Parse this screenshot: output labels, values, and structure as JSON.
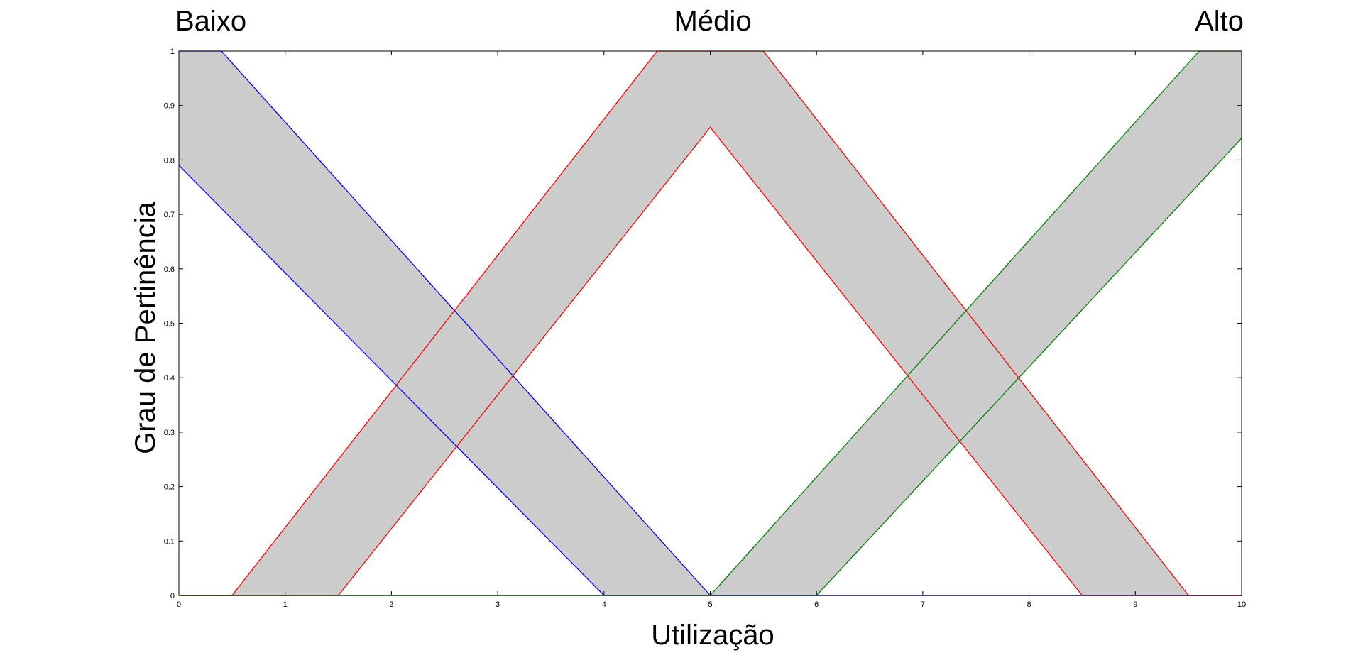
{
  "chart_data": {
    "type": "area",
    "chart_title": "",
    "xlabel": "Utilização",
    "ylabel": "Grau de Pertinência",
    "xlim": [
      0,
      10
    ],
    "ylim": [
      0,
      1
    ],
    "xticks": [
      "0",
      "1",
      "2",
      "3",
      "4",
      "5",
      "6",
      "7",
      "8",
      "9",
      "10"
    ],
    "yticks": [
      "0",
      "0.1",
      "0.2",
      "0.3",
      "0.4",
      "0.5",
      "0.6",
      "0.7",
      "0.8",
      "0.9",
      "1"
    ],
    "grid": false,
    "category_labels": [
      {
        "text": "Baixo",
        "position": "left"
      },
      {
        "text": "Médio",
        "position": "center"
      },
      {
        "text": "Alto",
        "position": "right"
      }
    ],
    "band_fill_color": "#cccccc",
    "series": [
      {
        "color": "#0000ff",
        "upper": [
          [
            0,
            1
          ],
          [
            0.4,
            1
          ],
          [
            5,
            0
          ],
          [
            10,
            0
          ]
        ],
        "lower": [
          [
            0,
            0.79
          ],
          [
            4,
            0
          ],
          [
            10,
            0
          ]
        ]
      },
      {
        "color": "#ff0000",
        "upper": [
          [
            0,
            0
          ],
          [
            0.5,
            0
          ],
          [
            4.5,
            1
          ],
          [
            5.5,
            1
          ],
          [
            9.5,
            0
          ],
          [
            10,
            0
          ]
        ],
        "lower": [
          [
            0,
            0
          ],
          [
            1.5,
            0
          ],
          [
            5,
            0.86
          ],
          [
            8.5,
            0
          ],
          [
            10,
            0
          ]
        ]
      },
      {
        "color": "#008000",
        "upper": [
          [
            0,
            0
          ],
          [
            5,
            0
          ],
          [
            9.6,
            1
          ],
          [
            10,
            1
          ]
        ],
        "lower": [
          [
            0,
            0
          ],
          [
            6,
            0
          ],
          [
            10,
            0.84
          ]
        ]
      }
    ]
  }
}
